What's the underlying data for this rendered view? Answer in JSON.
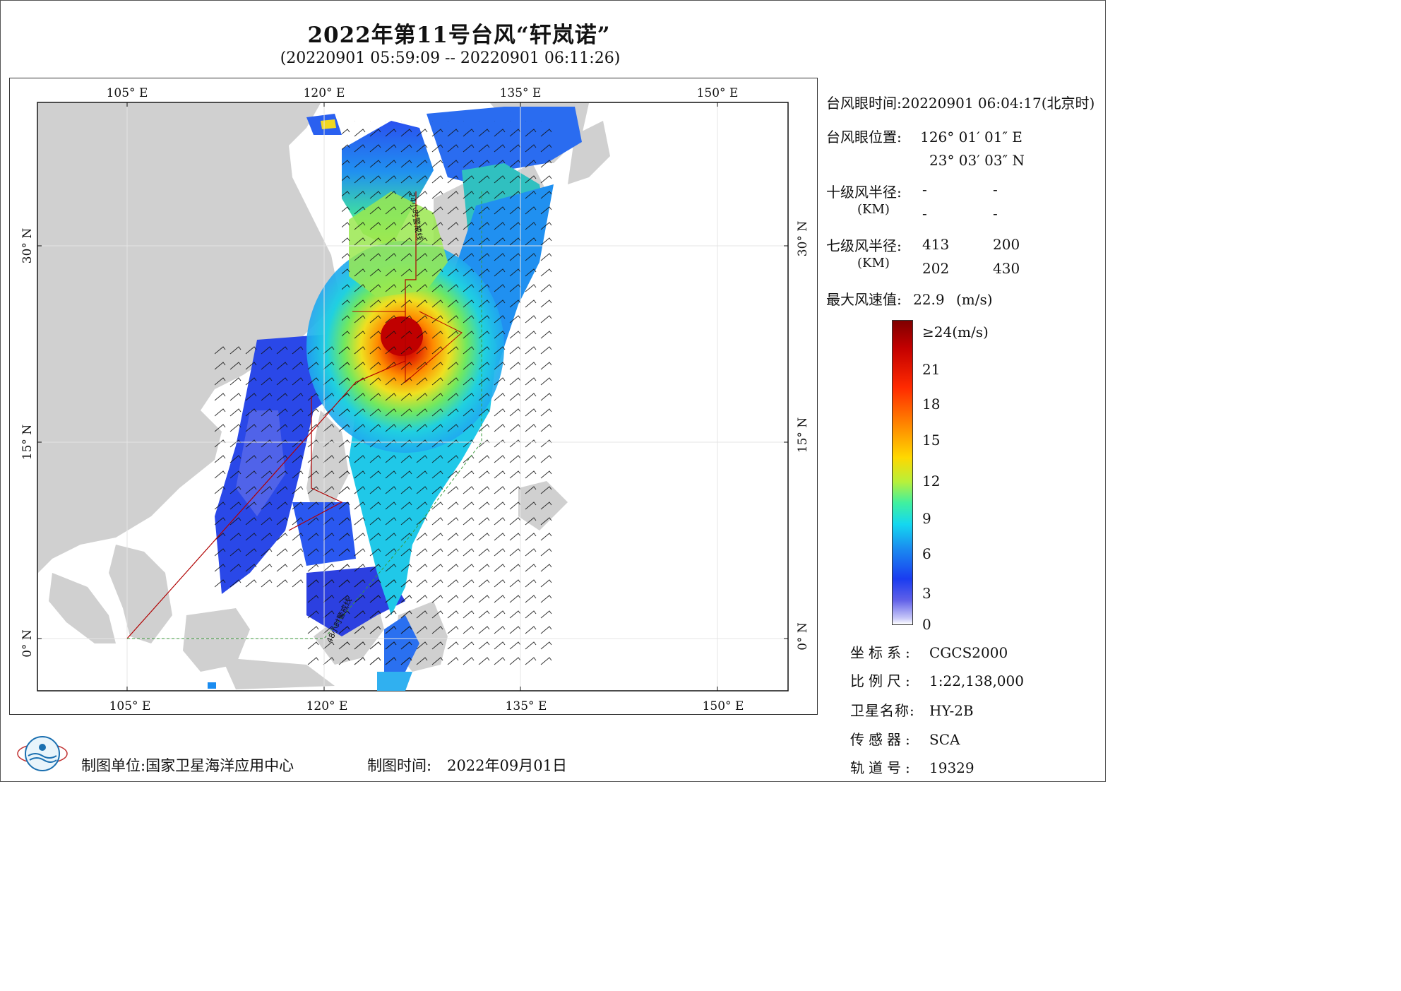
{
  "title": "2022年第11号台风“轩岚诺”",
  "subtitle": "(20220901 05:59:09 -- 20220901 06:11:26)",
  "map": {
    "lon_labels": [
      "105° E",
      "120° E",
      "135° E",
      "150° E"
    ],
    "lat_labels": [
      "30° N",
      "15° N",
      "0° N"
    ],
    "track_labels": [
      "24小时警戒线",
      "48小时警戒线"
    ]
  },
  "info": {
    "eye_time_label": "台风眼时间:",
    "eye_time_value": "20220901 06:04:17(北京时)",
    "eye_pos_label": "台风眼位置:",
    "eye_lon": "126° 01′ 01″ E",
    "eye_lat": "23° 03′ 03″ N",
    "r10_label": "十级风半径:",
    "r10_values": [
      "-",
      "-",
      "-",
      "-"
    ],
    "km_label": "(KM)",
    "r7_label": "七级风半径:",
    "r7_values": [
      "413",
      "200",
      "202",
      "430"
    ],
    "maxwind_label": "最大风速值:",
    "maxwind_value": "22.9",
    "maxwind_unit": "(m/s)"
  },
  "legend": {
    "top_label": "≥24(m/s)",
    "ticks": [
      "21",
      "18",
      "15",
      "12",
      "9",
      "6",
      "3",
      "0"
    ]
  },
  "meta": {
    "coord_label": "坐标系:",
    "coord_value": "CGCS2000",
    "scale_label": "比例尺:",
    "scale_value": "1:22,138,000",
    "sat_label": "卫星名称:",
    "sat_value": "HY-2B",
    "sensor_label": "传感器:",
    "sensor_value": "SCA",
    "orbit_label": "轨道号:",
    "orbit_value": "19329"
  },
  "footer": {
    "org_label": "制图单位:",
    "org_value": "国家卫星海洋应用中心",
    "date_label": "制图时间:",
    "date_value": "2022年09月01日"
  },
  "colors": {
    "land": "#d0d0d0",
    "ocean": "#ffffff",
    "alert24": "#b00000",
    "alert48": "#3a9a3a",
    "typhoon_core": "#c80000"
  }
}
